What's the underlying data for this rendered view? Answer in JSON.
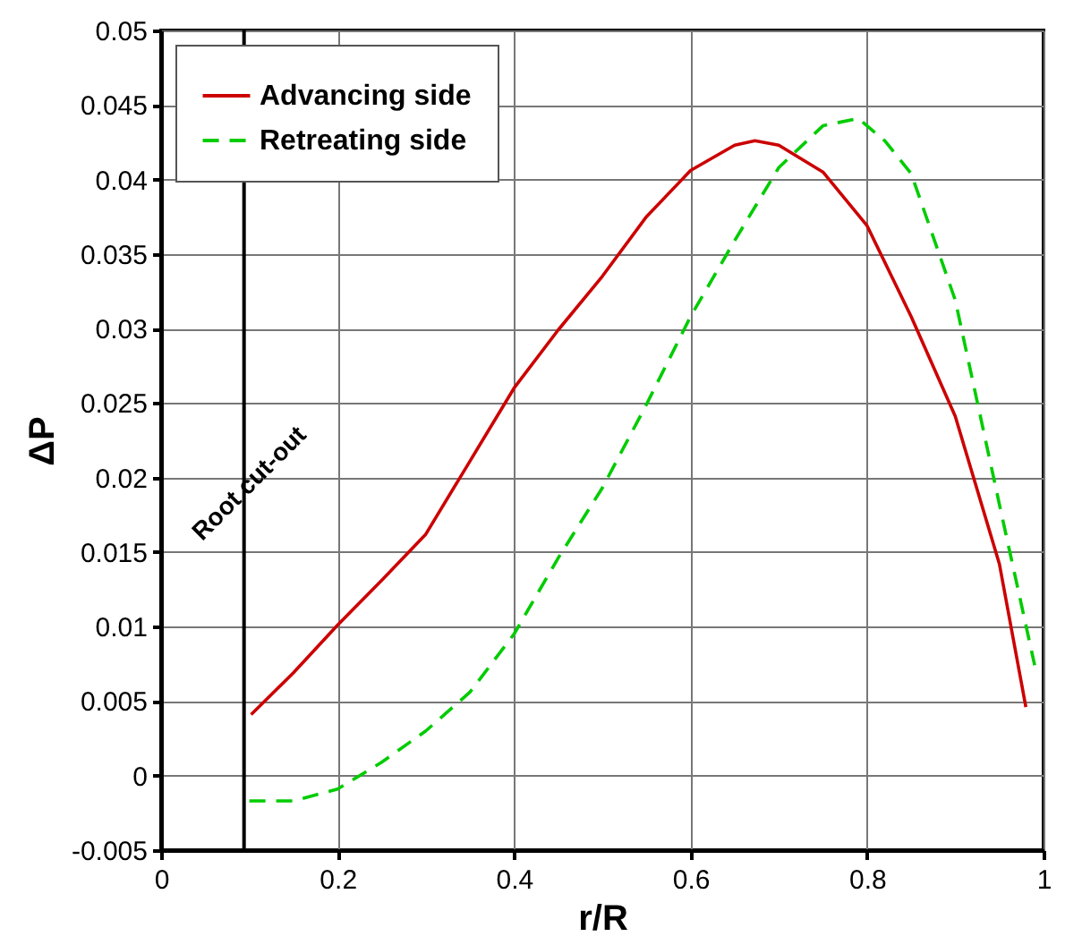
{
  "chart_data": {
    "type": "line",
    "xlabel": "r/R",
    "ylabel": "ΔP",
    "xlim": [
      0,
      1
    ],
    "ylim": [
      -0.005,
      0.05
    ],
    "xticks": [
      0,
      0.2,
      0.4,
      0.6,
      0.8,
      1
    ],
    "yticks": [
      -0.005,
      0,
      0.005,
      0.01,
      0.015,
      0.02,
      0.025,
      0.03,
      0.035,
      0.04,
      0.045,
      0.05
    ],
    "grid": true,
    "legend": "top left",
    "marker": "none",
    "ref_lines": [
      {
        "axis": "x",
        "value": 0.094,
        "label": "Root cut-out",
        "color": "#000000"
      }
    ],
    "series": [
      {
        "name": "Advancing side",
        "color": "#cc0000",
        "line_style": "solid",
        "x": [
          0.102,
          0.15,
          0.2,
          0.25,
          0.3,
          0.35,
          0.4,
          0.45,
          0.5,
          0.55,
          0.6,
          0.65,
          0.673,
          0.7,
          0.75,
          0.8,
          0.85,
          0.9,
          0.95,
          0.98
        ],
        "values": [
          0.0041,
          0.0069,
          0.0101,
          0.0131,
          0.0162,
          0.0211,
          0.026,
          0.0299,
          0.0335,
          0.0375,
          0.0406,
          0.0423,
          0.0426,
          0.0423,
          0.0405,
          0.0369,
          0.0308,
          0.0241,
          0.0142,
          0.0046
        ]
      },
      {
        "name": "Retreating side",
        "color": "#00cc00",
        "line_style": "dashed",
        "x": [
          0.1,
          0.15,
          0.2,
          0.25,
          0.3,
          0.35,
          0.4,
          0.45,
          0.5,
          0.55,
          0.6,
          0.65,
          0.7,
          0.75,
          0.79,
          0.82,
          0.85,
          0.9,
          0.95,
          0.99
        ],
        "values": [
          -0.0017,
          -0.0017,
          -0.0009,
          0.0009,
          0.003,
          0.0056,
          0.0095,
          0.0146,
          0.0193,
          0.0249,
          0.0308,
          0.0359,
          0.0408,
          0.0436,
          0.0441,
          0.0426,
          0.0404,
          0.0319,
          0.0182,
          0.0074
        ]
      }
    ]
  }
}
